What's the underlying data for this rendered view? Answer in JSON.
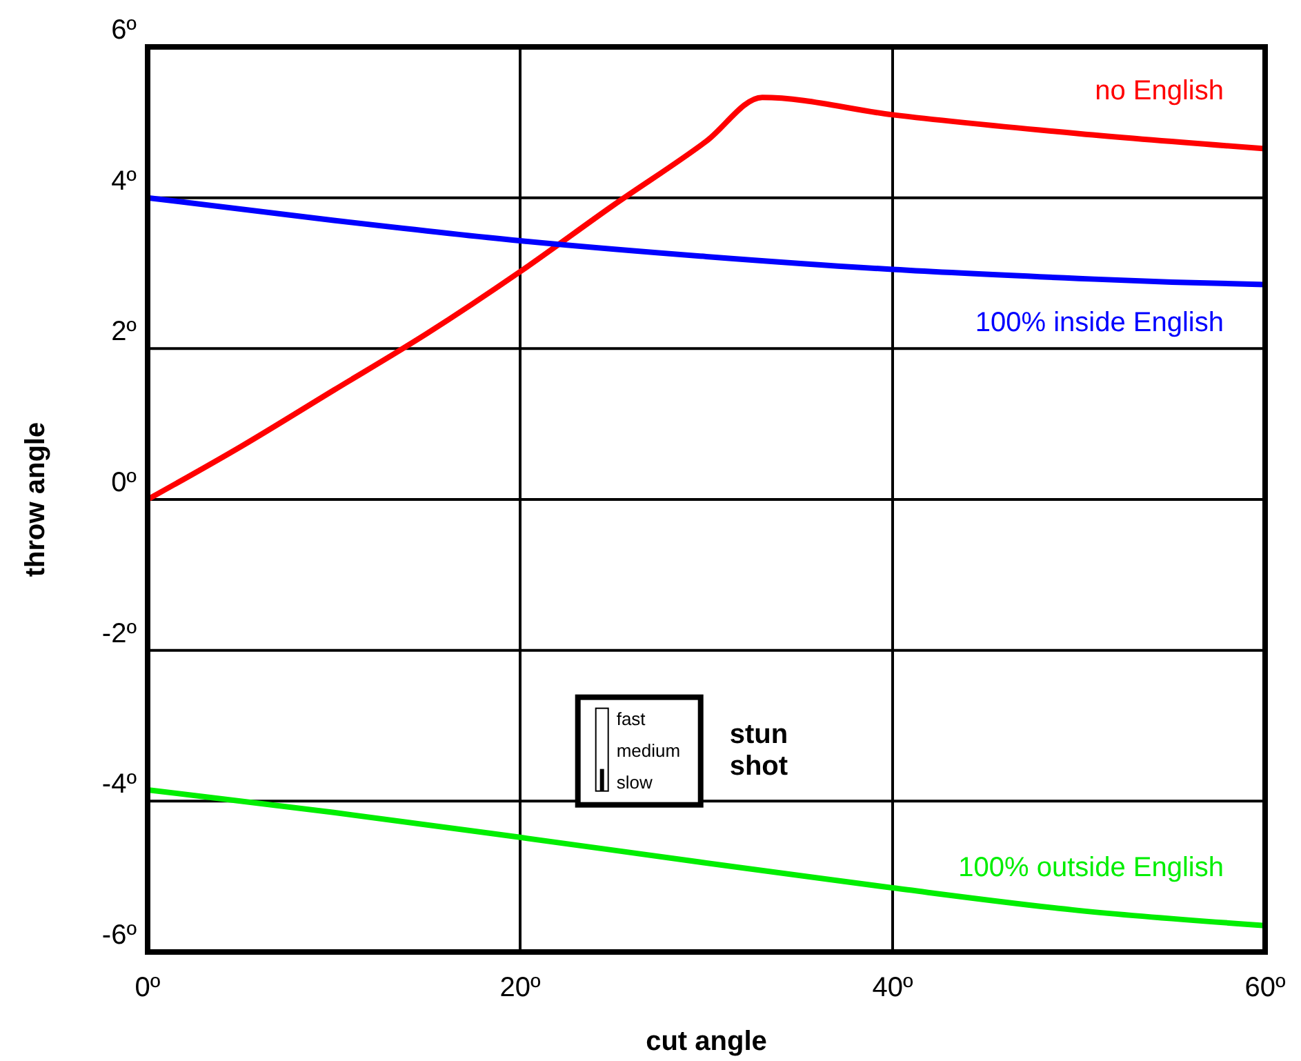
{
  "chart_data": {
    "type": "line",
    "xlabel": "cut angle",
    "ylabel": "throw angle",
    "xlim": [
      0,
      60
    ],
    "ylim": [
      -6,
      6
    ],
    "xticks": [
      {
        "value": 0,
        "label": "0º"
      },
      {
        "value": 20,
        "label": "20º"
      },
      {
        "value": 40,
        "label": "40º"
      },
      {
        "value": 60,
        "label": "60º"
      }
    ],
    "yticks": [
      {
        "value": -6,
        "label": "-6º"
      },
      {
        "value": -4,
        "label": "-4º"
      },
      {
        "value": -2,
        "label": "-2º"
      },
      {
        "value": 0,
        "label": "0º"
      },
      {
        "value": 2,
        "label": "2º"
      },
      {
        "value": 4,
        "label": "4º"
      },
      {
        "value": 6,
        "label": "6º"
      }
    ],
    "grid": true,
    "legend": false,
    "marker": "none",
    "line_style": "solid",
    "series": [
      {
        "name": "no English",
        "color": "#ff0000",
        "x": [
          0,
          5,
          10,
          15,
          20,
          25,
          30,
          33,
          40,
          50,
          60
        ],
        "values": [
          0,
          0.7,
          1.45,
          2.2,
          3.02,
          3.9,
          4.75,
          5.33,
          5.1,
          4.85,
          4.65
        ]
      },
      {
        "name": "100% inside English",
        "color": "#0000ff",
        "x": [
          0,
          10,
          20,
          30,
          40,
          50,
          55,
          60
        ],
        "values": [
          4,
          3.7,
          3.43,
          3.22,
          3.05,
          2.93,
          2.88,
          2.85
        ]
      },
      {
        "name": "100% outside English",
        "color": "#00ee00",
        "x": [
          0,
          10,
          20,
          30,
          40,
          50,
          60
        ],
        "values": [
          -3.85,
          -4.15,
          -4.48,
          -4.82,
          -5.15,
          -5.45,
          -5.65
        ]
      }
    ],
    "annotations": [
      "fast",
      "medium",
      "slow",
      "stun shot"
    ]
  }
}
